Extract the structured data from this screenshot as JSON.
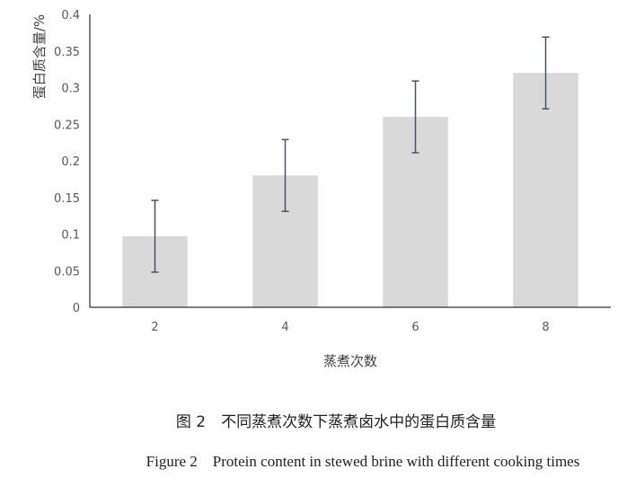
{
  "chart_data": {
    "type": "bar",
    "categories": [
      "2",
      "4",
      "6",
      "8"
    ],
    "values": [
      0.097,
      0.18,
      0.26,
      0.32
    ],
    "error": [
      0.049,
      0.049,
      0.049,
      0.049
    ],
    "xlabel": "蒸煮次数",
    "ylabel": "蛋白质含量/%",
    "ylim": [
      0,
      0.4
    ],
    "yticks": [
      "0",
      "0.05",
      "0.1",
      "0.15",
      "0.2",
      "0.25",
      "0.3",
      "0.35",
      "0.4"
    ],
    "grid": false,
    "legend": "none",
    "colors": {
      "bar": "#d9d9d9",
      "error": "#44546a",
      "axis": "#000000"
    }
  },
  "caption": {
    "cn": "图 2　不同蒸煮次数下蒸煮卤水中的蛋白质含量",
    "en": "Figure 2　Protein content in stewed brine with different cooking times"
  }
}
